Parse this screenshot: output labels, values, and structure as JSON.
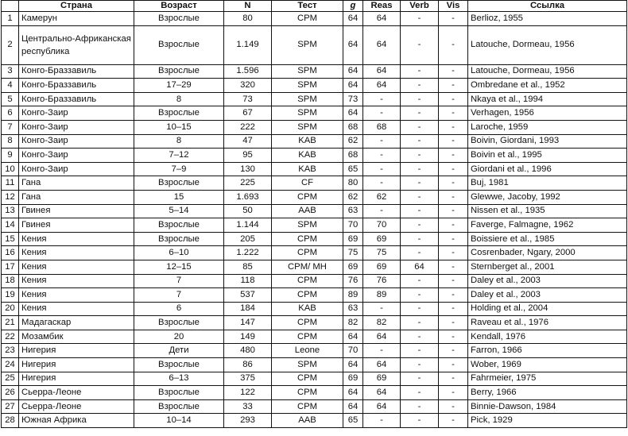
{
  "headers": [
    "",
    "Страна",
    "Возраст",
    "N",
    "Тест",
    "g",
    "Reas",
    "Verb",
    "Vis",
    "Ссылка"
  ],
  "rows": [
    [
      "1",
      "Камерун",
      "Взрослые",
      "80",
      "CPM",
      "64",
      "64",
      "-",
      "-",
      "Berlioz, 1955"
    ],
    [
      "2",
      "Центрально-Африканская республика",
      "Взрослые",
      "1.149",
      "SPM",
      "64",
      "64",
      "-",
      "-",
      "Latouche, Dormeau, 1956"
    ],
    [
      "3",
      "Конго-Браззавиль",
      "Взрослые",
      "1.596",
      "SPM",
      "64",
      "64",
      "-",
      "-",
      "Latouche, Dormeau, 1956"
    ],
    [
      "4",
      "Конго-Браззавиль",
      "17–29",
      "320",
      "SPM",
      "64",
      "64",
      "-",
      "-",
      "Ombredane et al., 1952"
    ],
    [
      "5",
      "Конго-Браззавиль",
      "8",
      "73",
      "SPM",
      "73",
      "-",
      "-",
      "-",
      "Nkaya et al., 1994"
    ],
    [
      "6",
      "Конго-Заир",
      "Взрослые",
      "67",
      "SPM",
      "64",
      "-",
      "-",
      "-",
      "Verhagen, 1956"
    ],
    [
      "7",
      "Конго-Заир",
      "10–15",
      "222",
      "SPM",
      "68",
      "68",
      "-",
      "-",
      "Laroche, 1959"
    ],
    [
      "8",
      "Конго-Заир",
      "8",
      "47",
      "KAB",
      "62",
      "-",
      "-",
      "-",
      "Boivin, Giordani, 1993"
    ],
    [
      "9",
      "Конго-Заир",
      "7–12",
      "95",
      "KAB",
      "68",
      "-",
      "-",
      "-",
      "Boivin et al., 1995"
    ],
    [
      "10",
      "Конго-Заир",
      "7–9",
      "130",
      "KAB",
      "65",
      "-",
      "-",
      "-",
      "Giordani et al., 1996"
    ],
    [
      "11",
      "Гана",
      "Взрослые",
      "225",
      "CF",
      "80",
      "-",
      "-",
      "-",
      "Buj, 1981"
    ],
    [
      "12",
      "Гана",
      "15",
      "1.693",
      "CPM",
      "62",
      "62",
      "-",
      "-",
      "Glewwe, Jacoby, 1992"
    ],
    [
      "13",
      "Гвинея",
      "5–14",
      "50",
      "AAB",
      "63",
      "-",
      "-",
      "-",
      "Nissen et al., 1935"
    ],
    [
      "14",
      "Гвинея",
      "Взрослые",
      "1.144",
      "SPM",
      "70",
      "70",
      "-",
      "-",
      "Faverge, Falmagne, 1962"
    ],
    [
      "15",
      "Кения",
      "Взрослые",
      "205",
      "CPM",
      "69",
      "69",
      "-",
      "-",
      "Boissiere et al., 1985"
    ],
    [
      "16",
      "Кения",
      "6–10",
      "1.222",
      "CPM",
      "75",
      "75",
      "-",
      "-",
      "Cosrenbader, Ngary, 2000"
    ],
    [
      "17",
      "Кения",
      "12–15",
      "85",
      "CPM/ MH",
      "69",
      "69",
      "64",
      "-",
      "Sternberget al., 2001"
    ],
    [
      "18",
      "Кения",
      "7",
      "118",
      "CPM",
      "76",
      "76",
      "-",
      "-",
      "Daley et al., 2003"
    ],
    [
      "19",
      "Кения",
      "7",
      "537",
      "CPM",
      "89",
      "89",
      "-",
      "-",
      "Daley et al., 2003"
    ],
    [
      "20",
      "Кения",
      "6",
      "184",
      "KAB",
      "63",
      "-",
      "-",
      "-",
      "Holding et al., 2004"
    ],
    [
      "21",
      "Мадагаскар",
      "Взрослые",
      "147",
      "CPM",
      "82",
      "82",
      "-",
      "-",
      "Raveau et al., 1976"
    ],
    [
      "22",
      "Мозамбик",
      "20",
      "149",
      "CPM",
      "64",
      "64",
      "-",
      "-",
      "Kendall, 1976"
    ],
    [
      "23",
      "Нигерия",
      "Дети",
      "480",
      "Leone",
      "70",
      "-",
      "-",
      "-",
      "Farron, 1966"
    ],
    [
      "24",
      "Нигерия",
      "Взрослые",
      "86",
      "SPM",
      "64",
      "64",
      "-",
      "-",
      "Wober, 1969"
    ],
    [
      "25",
      "Нигерия",
      "6–13",
      "375",
      "CPM",
      "69",
      "69",
      "-",
      "-",
      "Fahrmeier, 1975"
    ],
    [
      "26",
      "Сьерра-Леоне",
      "Взрослые",
      "122",
      "CPM",
      "64",
      "64",
      "-",
      "-",
      "Berry, 1966"
    ],
    [
      "27",
      "Сьерра-Леоне",
      "Взрослые",
      "33",
      "CPM",
      "64",
      "64",
      "-",
      "-",
      "Binnie-Dawson, 1984"
    ],
    [
      "28",
      "Южная Африка",
      "10–14",
      "293",
      "AAB",
      "65",
      "-",
      "-",
      "-",
      "Pick, 1929"
    ]
  ]
}
